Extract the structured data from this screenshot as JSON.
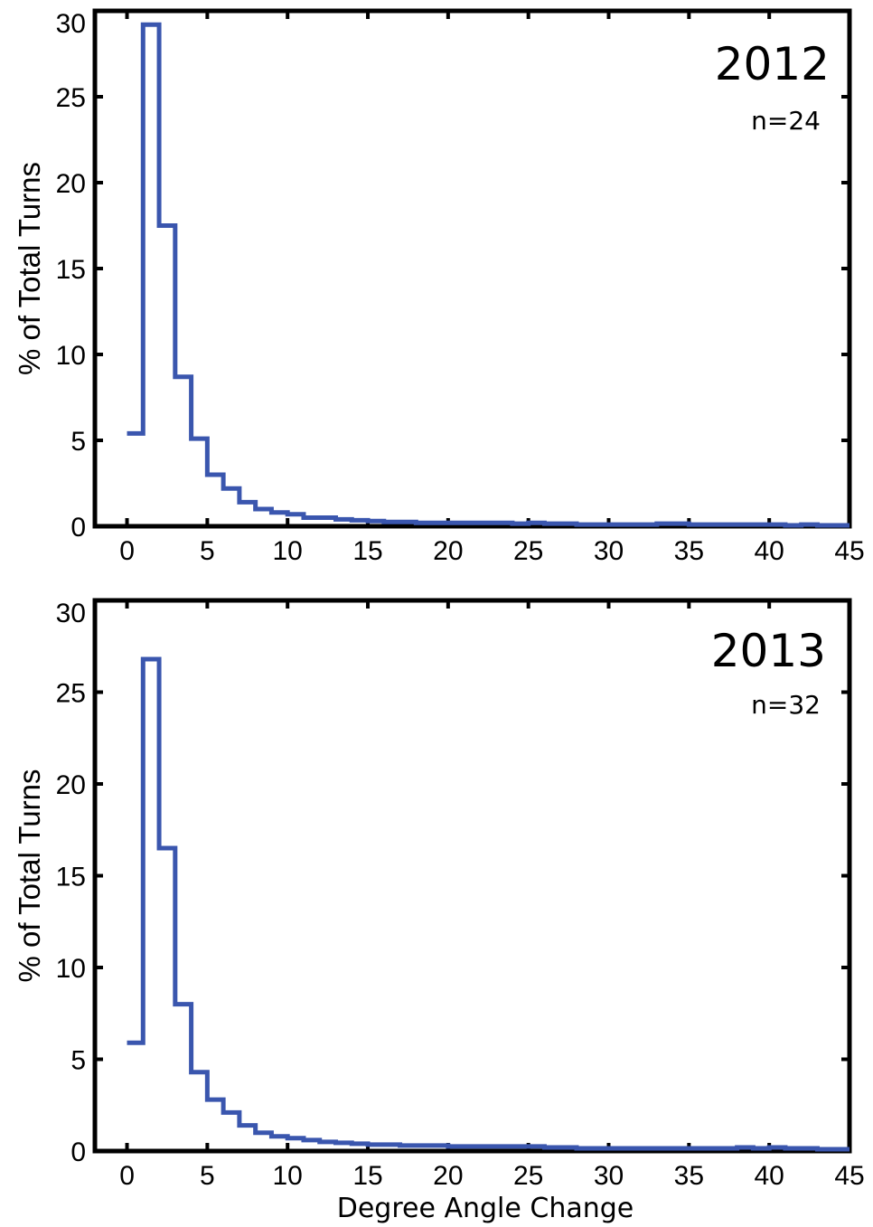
{
  "chart_data": [
    {
      "type": "line",
      "step": true,
      "title": "",
      "annotations": [
        "2012",
        "n=24"
      ],
      "xlabel": "",
      "ylabel": "% of Total Turns",
      "xlim": [
        -2,
        45
      ],
      "ylim": [
        0,
        30
      ],
      "xticks": [
        "0",
        "5",
        "10",
        "15",
        "20",
        "25",
        "30",
        "35",
        "40",
        "45"
      ],
      "yticks": [
        "0",
        "5",
        "10",
        "15",
        "20",
        "25",
        "30"
      ],
      "series": [
        {
          "color": "#3a56ae",
          "bin_edges": [
            0,
            1,
            2,
            3,
            4,
            5,
            6,
            7,
            8,
            9,
            10,
            11,
            12,
            13,
            14,
            15,
            16,
            17,
            18,
            19,
            20,
            21,
            22,
            23,
            24,
            25,
            26,
            27,
            28,
            29,
            30,
            31,
            32,
            33,
            34,
            35,
            36,
            37,
            38,
            39,
            40,
            41,
            42,
            43,
            44,
            45
          ],
          "values": [
            5.4,
            29.2,
            17.5,
            8.7,
            5.1,
            3.0,
            2.2,
            1.4,
            1.0,
            0.8,
            0.7,
            0.5,
            0.5,
            0.4,
            0.35,
            0.3,
            0.25,
            0.25,
            0.2,
            0.2,
            0.2,
            0.2,
            0.2,
            0.2,
            0.15,
            0.2,
            0.15,
            0.15,
            0.1,
            0.1,
            0.1,
            0.1,
            0.1,
            0.15,
            0.15,
            0.1,
            0.1,
            0.1,
            0.1,
            0.1,
            0.1,
            0.05,
            0.1,
            0.05,
            0.05
          ]
        }
      ]
    },
    {
      "type": "line",
      "step": true,
      "title": "",
      "annotations": [
        "2013",
        "n=32"
      ],
      "xlabel": "Degree Angle Change",
      "ylabel": "% of Total Turns",
      "xlim": [
        -2,
        45
      ],
      "ylim": [
        0,
        30
      ],
      "xticks": [
        "0",
        "5",
        "10",
        "15",
        "20",
        "25",
        "30",
        "35",
        "40",
        "45"
      ],
      "yticks": [
        "0",
        "5",
        "10",
        "15",
        "20",
        "25",
        "30"
      ],
      "series": [
        {
          "color": "#3a56ae",
          "bin_edges": [
            0,
            1,
            2,
            3,
            4,
            5,
            6,
            7,
            8,
            9,
            10,
            11,
            12,
            13,
            14,
            15,
            16,
            17,
            18,
            19,
            20,
            21,
            22,
            23,
            24,
            25,
            26,
            27,
            28,
            29,
            30,
            31,
            32,
            33,
            34,
            35,
            36,
            37,
            38,
            39,
            40,
            41,
            42,
            43,
            44,
            45
          ],
          "values": [
            5.9,
            26.8,
            16.5,
            8.0,
            4.3,
            2.8,
            2.1,
            1.4,
            1.0,
            0.8,
            0.7,
            0.6,
            0.5,
            0.45,
            0.4,
            0.35,
            0.35,
            0.3,
            0.3,
            0.3,
            0.25,
            0.25,
            0.25,
            0.25,
            0.25,
            0.25,
            0.2,
            0.2,
            0.15,
            0.15,
            0.15,
            0.15,
            0.15,
            0.15,
            0.15,
            0.15,
            0.15,
            0.15,
            0.2,
            0.15,
            0.2,
            0.15,
            0.15,
            0.1,
            0.1
          ]
        }
      ]
    }
  ]
}
